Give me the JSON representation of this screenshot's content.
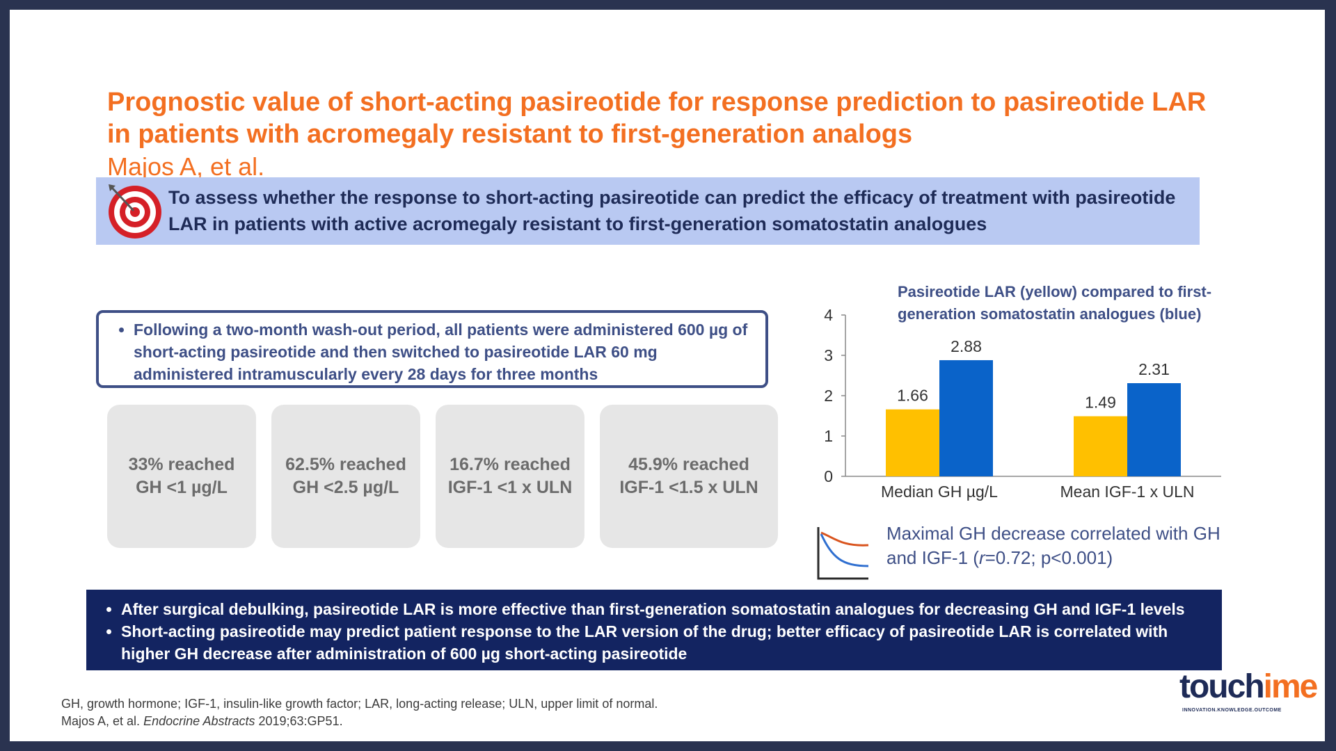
{
  "slide": {
    "title": "Prognostic value of short-acting pasireotide for response prediction to pasireotide LAR in patients with acromegaly resistant to first-generation analogs",
    "authors": "Majos A, et al.",
    "objective": {
      "icon": "target-icon",
      "text": "To assess whether the response to short-acting pasireotide can predict the efficacy of treatment with pasireotide LAR in patients with active acromegaly resistant to first-generation somatostatin analogues"
    },
    "method": "Following a two-month wash-out period, all patients were administered 600 µg of short-acting pasireotide and then switched to pasireotide LAR 60 mg administered intramuscularly every 28 days for three months",
    "stats": [
      {
        "text": "33% reached\nGH <1 µg/L"
      },
      {
        "text": "62.5% reached\nGH <2.5 µg/L"
      },
      {
        "text": "16.7% reached\nIGF-1 <1 x ULN"
      },
      {
        "text": "45.9% reached\nIGF-1 <1.5 x ULN"
      }
    ],
    "correlation": {
      "icon": "correlation-curve-icon",
      "text_before": "Maximal GH decrease correlated with GH and IGF-1 (",
      "r_symbol": "r",
      "text_after": "=0.72; p<0.001)"
    },
    "conclusions": [
      "After surgical debulking, pasireotide LAR is more effective than first-generation somatostatin analogues for decreasing GH and IGF-1 levels",
      "Short-acting pasireotide may predict patient response to the LAR version of the drug; better efficacy of pasireotide LAR is correlated with higher GH decrease after administration of 600 µg short-acting pasireotide"
    ],
    "footnote": {
      "line1": "GH, growth hormone; IGF-1, insulin-like growth factor; LAR, long-acting release; ULN, upper limit of normal.",
      "ref_prefix": "Majos A, et al. ",
      "ref_journal": "Endocrine Abstracts",
      "ref_suffix": " 2019;63:GP51."
    },
    "logo": {
      "part1": "touch",
      "part2": "ime",
      "tagline": "INNOVATION.KNOWLEDGE.OUTCOME"
    }
  },
  "chart_data": {
    "type": "bar",
    "title": "Pasireotide LAR (yellow) compared to first-generation somatostatin analogues (blue)",
    "categories": [
      "Median GH µg/L",
      "Mean IGF-1 x ULN"
    ],
    "series": [
      {
        "values": [
          1.66,
          1.49
        ],
        "color": "#ffc000"
      },
      {
        "values": [
          2.88,
          2.31
        ],
        "color": "#0a63c9"
      }
    ],
    "ylim": [
      0,
      4
    ],
    "yticks": [
      "0",
      "1",
      "2",
      "3",
      "4"
    ],
    "data_labels": true,
    "grid": false,
    "legend": "none"
  }
}
